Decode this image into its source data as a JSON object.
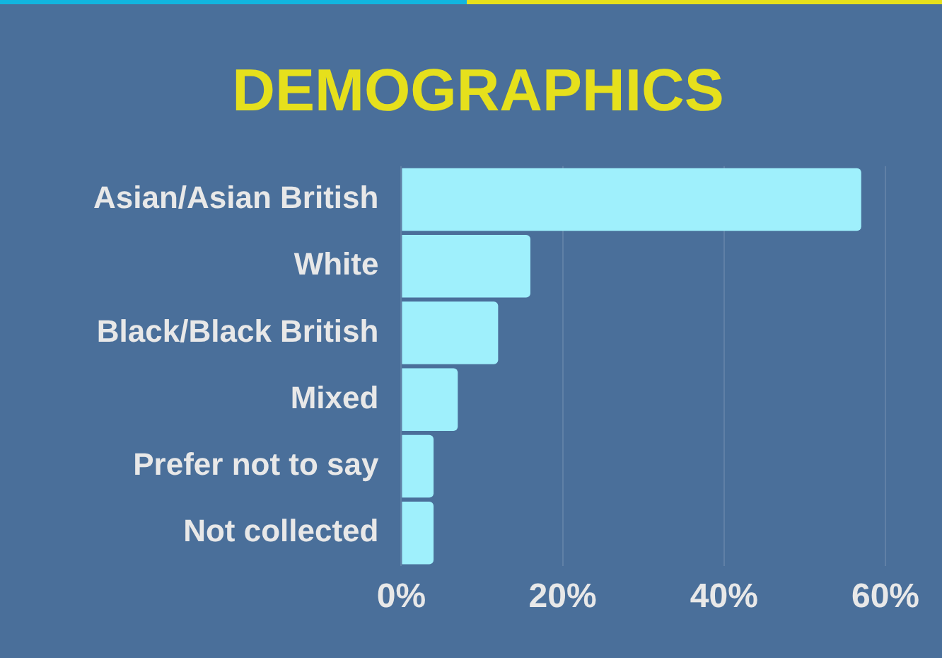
{
  "chart_data": {
    "type": "bar",
    "title": "DEMOGRAPHICS",
    "orientation": "horizontal",
    "categories": [
      "Asian/Asian British",
      "White",
      "Black/Black British",
      "Mixed",
      "Prefer not to say",
      "Not collected"
    ],
    "values": [
      57,
      16,
      12,
      7,
      4,
      4
    ],
    "color": "#9ff0fc",
    "xlim": [
      0,
      60
    ],
    "xticks": [
      {
        "value": 0,
        "label": "0%"
      },
      {
        "value": 20,
        "label": "20%"
      },
      {
        "value": 40,
        "label": "40%"
      },
      {
        "value": 60,
        "label": "60%"
      }
    ],
    "grid": "x",
    "legend": false
  }
}
